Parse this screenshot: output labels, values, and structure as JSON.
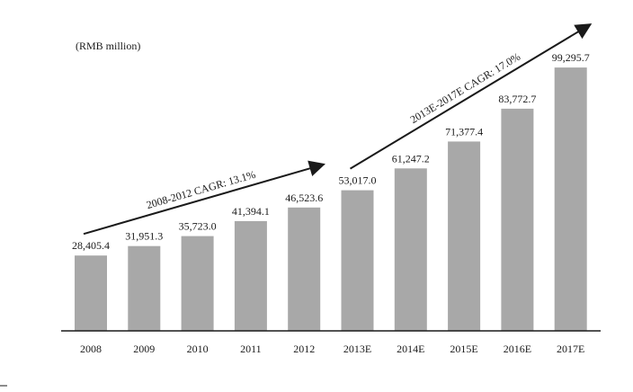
{
  "chart_data": {
    "type": "bar",
    "unit_label": "(RMB million)",
    "categories": [
      "2008",
      "2009",
      "2010",
      "2011",
      "2012",
      "2013E",
      "2014E",
      "2015E",
      "2016E",
      "2017E"
    ],
    "values": [
      28405.4,
      31951.3,
      35723.0,
      41394.1,
      46523.6,
      53017.0,
      61247.2,
      71377.4,
      83772.7,
      99295.7
    ],
    "value_labels": [
      "28,405.4",
      "31,951.3",
      "35,723.0",
      "41,394.1",
      "46,523.6",
      "53,017.0",
      "61,247.2",
      "71,377.4",
      "83,772.7",
      "99,295.7"
    ],
    "annotations": [
      {
        "text": "2008-2012 CAGR: 13.1%",
        "from_category": "2008",
        "to_category": "2012"
      },
      {
        "text": "2013E-2017E CAGR: 17.0%",
        "from_category": "2013E",
        "to_category": "2017E"
      }
    ],
    "ylim": [
      0,
      100000
    ],
    "grid": false,
    "legend": "none",
    "colors": {
      "bar": "#a8a8a8",
      "axis": "#1a1a1a",
      "arrow": "#1a1a1a",
      "text": "#1a1a1a"
    }
  }
}
